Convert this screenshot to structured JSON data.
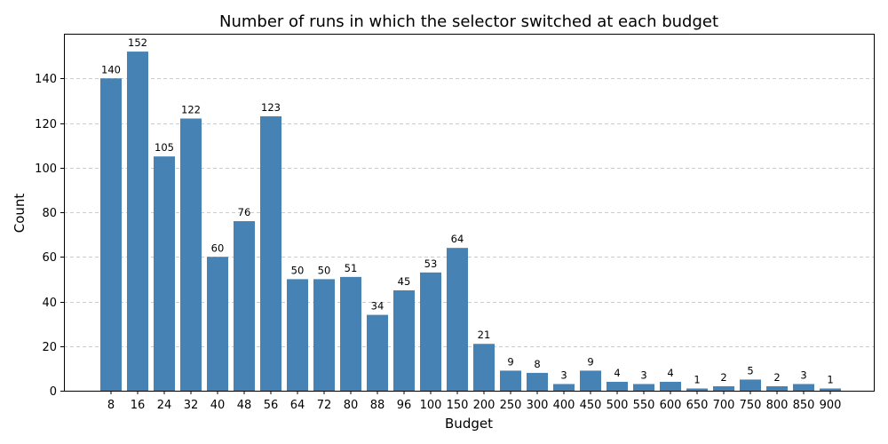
{
  "chart_data": {
    "type": "bar",
    "title": "Number of runs in which the selector switched at each budget",
    "xlabel": "Budget",
    "ylabel": "Count",
    "categories": [
      "8",
      "16",
      "24",
      "32",
      "40",
      "48",
      "56",
      "64",
      "72",
      "80",
      "88",
      "96",
      "100",
      "150",
      "200",
      "250",
      "300",
      "400",
      "450",
      "500",
      "550",
      "600",
      "650",
      "700",
      "750",
      "800",
      "850",
      "900"
    ],
    "values": [
      140,
      152,
      105,
      122,
      60,
      76,
      123,
      50,
      50,
      51,
      34,
      45,
      53,
      64,
      21,
      9,
      8,
      3,
      9,
      4,
      3,
      4,
      1,
      2,
      5,
      2,
      3,
      1
    ],
    "ylim": [
      0,
      160
    ],
    "yticks": [
      0,
      20,
      40,
      60,
      80,
      100,
      120,
      140
    ],
    "grid": "y-dashed",
    "bar_color": "#4682b4",
    "show_data_labels": true
  }
}
